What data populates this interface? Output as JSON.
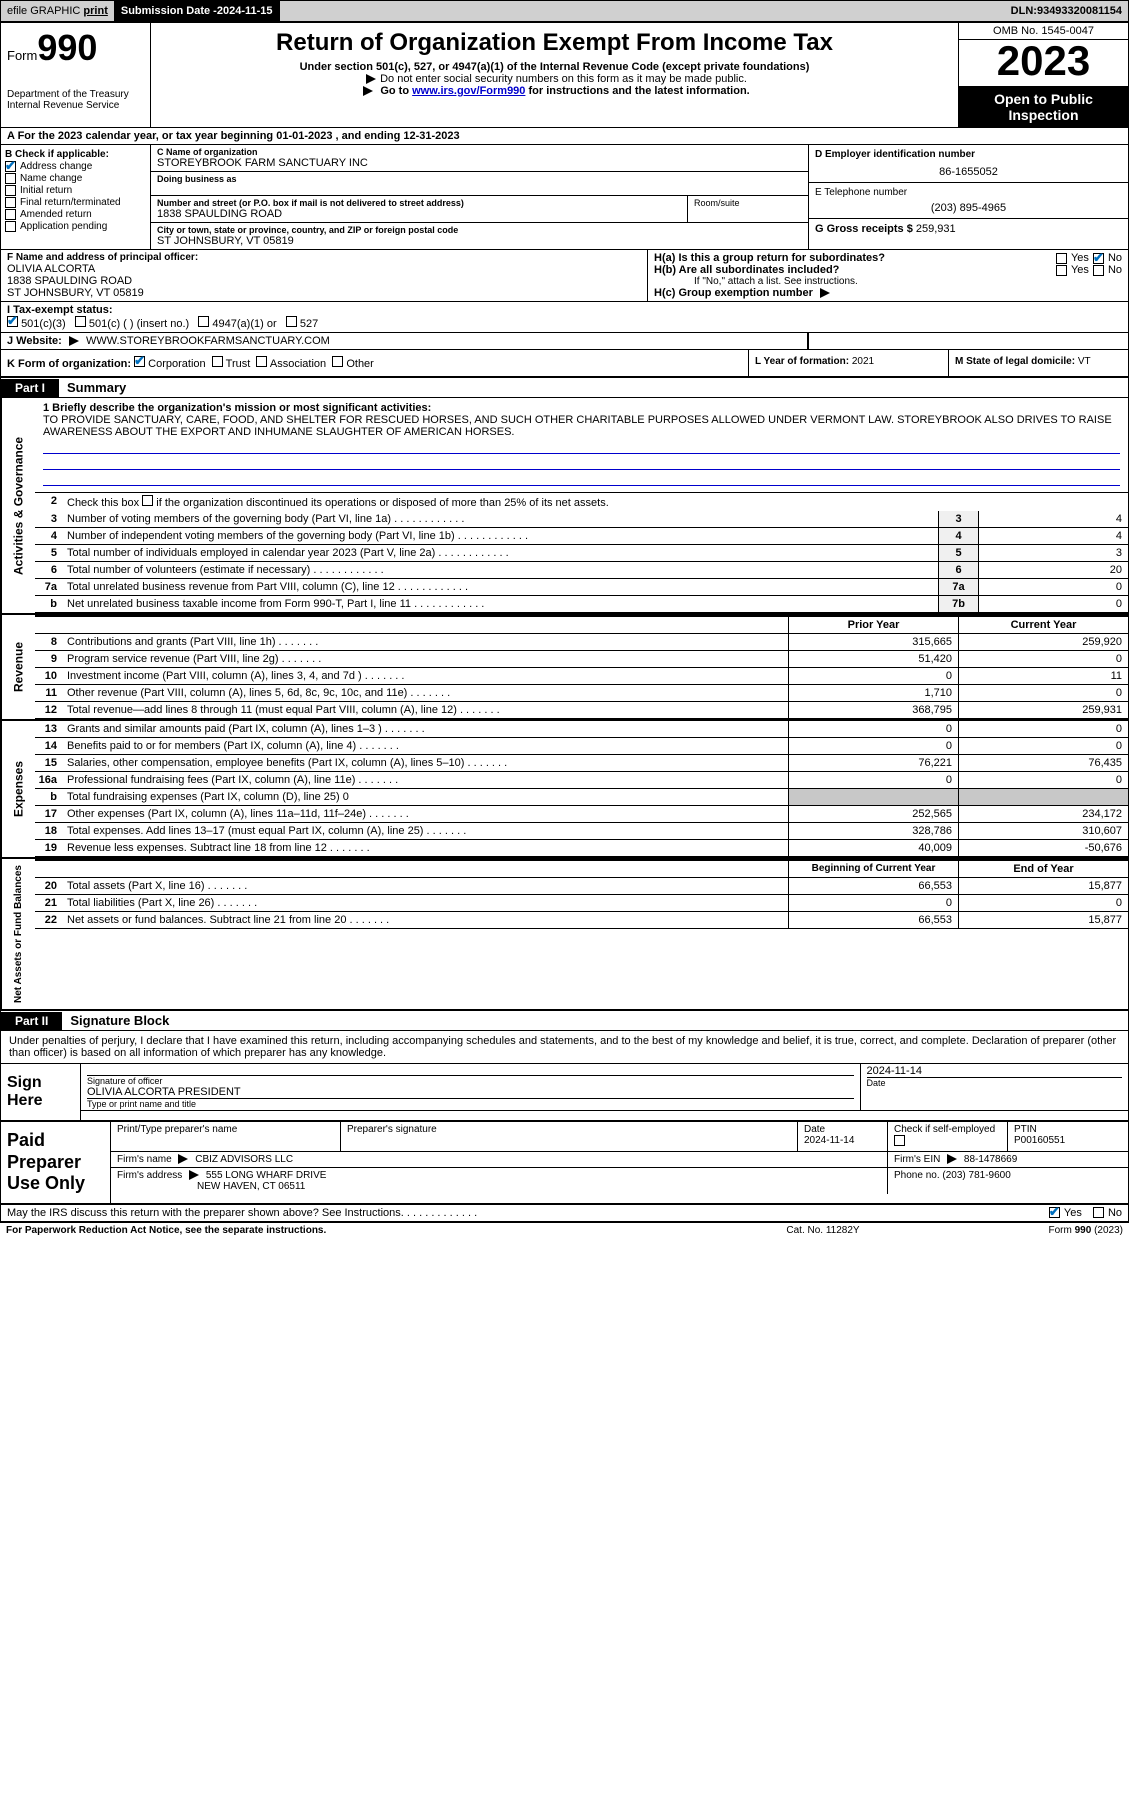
{
  "topbar": {
    "efile": "efile GRAPHIC",
    "print": "print",
    "sub_date_label": "Submission Date - ",
    "sub_date": "2024-11-15",
    "dln_label": "DLN: ",
    "dln": "93493320081154"
  },
  "header": {
    "form_prefix": "Form",
    "form_num": "990",
    "title": "Return of Organization Exempt From Income Tax",
    "sub1": "Under section 501(c), 527, or 4947(a)(1) of the Internal Revenue Code (except private foundations)",
    "sub2": "Do not enter social security numbers on this form as it may be made public.",
    "sub3_pre": "Go to ",
    "sub3_link": "www.irs.gov/Form990",
    "sub3_post": " for instructions and the latest information.",
    "dept": "Department of the Treasury\nInternal Revenue Service",
    "omb": "OMB No. 1545-0047",
    "tax_year": "2023",
    "open_pub": "Open to Public Inspection"
  },
  "row_a": {
    "text": "A For the 2023 calendar year, or tax year beginning ",
    "begin": "01-01-2023",
    "mid": "  , and ending ",
    "end": "12-31-2023"
  },
  "col_b": {
    "label": "B Check if applicable:",
    "items": [
      {
        "txt": "Address change",
        "checked": true
      },
      {
        "txt": "Name change",
        "checked": false
      },
      {
        "txt": "Initial return",
        "checked": false
      },
      {
        "txt": "Final return/terminated",
        "checked": false
      },
      {
        "txt": "Amended return",
        "checked": false
      },
      {
        "txt": "Application pending",
        "checked": false
      }
    ]
  },
  "org": {
    "name_label": "C Name of organization",
    "name": "STOREYBROOK FARM SANCTUARY INC",
    "dba_label": "Doing business as",
    "addr_label": "Number and street (or P.O. box if mail is not delivered to street address)",
    "addr": "1838 SPAULDING ROAD",
    "room_label": "Room/suite",
    "city_label": "City or town, state or province, country, and ZIP or foreign postal code",
    "city": "ST JOHNSBURY, VT  05819"
  },
  "right_col": {
    "ein_label": "D Employer identification number",
    "ein": "86-1655052",
    "phone_label": "E Telephone number",
    "phone": "(203) 895-4965",
    "gross_label": "G Gross receipts $ ",
    "gross": "259,931"
  },
  "officer": {
    "label": "F Name and address of principal officer:",
    "name": "OLIVIA ALCORTA",
    "addr1": "1838 SPAULDING ROAD",
    "addr2": "ST JOHNSBURY, VT  05819"
  },
  "h_block": {
    "ha": "H(a)  Is this a group return for subordinates?",
    "hb": "H(b)  Are all subordinates included?",
    "hb_note": "If \"No,\" attach a list. See instructions.",
    "hc": "H(c)  Group exemption number",
    "yes": "Yes",
    "no": "No"
  },
  "row_i": {
    "label": "I    Tax-exempt status:",
    "opt1": "501(c)(3)",
    "opt2": "501(c) (  ) (insert no.)",
    "opt3": "4947(a)(1) or",
    "opt4": "527"
  },
  "row_j": {
    "label": "J    Website:",
    "value": "WWW.STOREYBROOKFARMSANCTUARY.COM"
  },
  "row_k": {
    "label": "K Form of organization:",
    "corp": "Corporation",
    "trust": "Trust",
    "assoc": "Association",
    "other": "Other",
    "l_label": "L Year of formation: ",
    "l_val": "2021",
    "m_label": "M State of legal domicile: ",
    "m_val": "VT"
  },
  "parts": {
    "p1": "Part I",
    "p1_title": "Summary",
    "p2": "Part II",
    "p2_title": "Signature Block"
  },
  "vtabs": {
    "gov": "Activities & Governance",
    "rev": "Revenue",
    "exp": "Expenses",
    "net": "Net Assets or Fund Balances"
  },
  "mission": {
    "label": "1   Briefly describe the organization's mission or most significant activities:",
    "text": "TO PROVIDE SANCTUARY, CARE, FOOD, AND SHELTER FOR RESCUED HORSES, AND SUCH OTHER CHARITABLE PURPOSES ALLOWED UNDER VERMONT LAW. STOREYBROOK ALSO DRIVES TO RAISE AWARENESS ABOUT THE EXPORT AND INHUMANE SLAUGHTER OF AMERICAN HORSES."
  },
  "gov_lines": [
    {
      "n": "2",
      "d": "Check this box      if the organization discontinued its operations or disposed of more than 25% of its net assets.",
      "b": "",
      "v": ""
    },
    {
      "n": "3",
      "d": "Number of voting members of the governing body (Part VI, line 1a)",
      "b": "3",
      "v": "4"
    },
    {
      "n": "4",
      "d": "Number of independent voting members of the governing body (Part VI, line 1b)",
      "b": "4",
      "v": "4"
    },
    {
      "n": "5",
      "d": "Total number of individuals employed in calendar year 2023 (Part V, line 2a)",
      "b": "5",
      "v": "3"
    },
    {
      "n": "6",
      "d": "Total number of volunteers (estimate if necessary)",
      "b": "6",
      "v": "20"
    },
    {
      "n": "7a",
      "d": "Total unrelated business revenue from Part VIII, column (C), line 12",
      "b": "7a",
      "v": "0"
    },
    {
      "n": "b",
      "d": "Net unrelated business taxable income from Form 990-T, Part I, line 11",
      "b": "7b",
      "v": "0"
    }
  ],
  "fin_hdr": {
    "prior": "Prior Year",
    "curr": "Current Year",
    "beg": "Beginning of Current Year",
    "end": "End of Year"
  },
  "rev_lines": [
    {
      "n": "8",
      "d": "Contributions and grants (Part VIII, line 1h)",
      "p": "315,665",
      "c": "259,920"
    },
    {
      "n": "9",
      "d": "Program service revenue (Part VIII, line 2g)",
      "p": "51,420",
      "c": "0"
    },
    {
      "n": "10",
      "d": "Investment income (Part VIII, column (A), lines 3, 4, and 7d )",
      "p": "0",
      "c": "11"
    },
    {
      "n": "11",
      "d": "Other revenue (Part VIII, column (A), lines 5, 6d, 8c, 9c, 10c, and 11e)",
      "p": "1,710",
      "c": "0"
    },
    {
      "n": "12",
      "d": "Total revenue—add lines 8 through 11 (must equal Part VIII, column (A), line 12)",
      "p": "368,795",
      "c": "259,931"
    }
  ],
  "exp_lines": [
    {
      "n": "13",
      "d": "Grants and similar amounts paid (Part IX, column (A), lines 1–3 )",
      "p": "0",
      "c": "0"
    },
    {
      "n": "14",
      "d": "Benefits paid to or for members (Part IX, column (A), line 4)",
      "p": "0",
      "c": "0"
    },
    {
      "n": "15",
      "d": "Salaries, other compensation, employee benefits (Part IX, column (A), lines 5–10)",
      "p": "76,221",
      "c": "76,435"
    },
    {
      "n": "16a",
      "d": "Professional fundraising fees (Part IX, column (A), line 11e)",
      "p": "0",
      "c": "0"
    },
    {
      "n": "b",
      "d": "Total fundraising expenses (Part IX, column (D), line 25) 0",
      "p": "",
      "c": "",
      "gray": true
    },
    {
      "n": "17",
      "d": "Other expenses (Part IX, column (A), lines 11a–11d, 11f–24e)",
      "p": "252,565",
      "c": "234,172"
    },
    {
      "n": "18",
      "d": "Total expenses. Add lines 13–17 (must equal Part IX, column (A), line 25)",
      "p": "328,786",
      "c": "310,607"
    },
    {
      "n": "19",
      "d": "Revenue less expenses. Subtract line 18 from line 12",
      "p": "40,009",
      "c": "-50,676"
    }
  ],
  "net_lines": [
    {
      "n": "20",
      "d": "Total assets (Part X, line 16)",
      "p": "66,553",
      "c": "15,877"
    },
    {
      "n": "21",
      "d": "Total liabilities (Part X, line 26)",
      "p": "0",
      "c": "0"
    },
    {
      "n": "22",
      "d": "Net assets or fund balances. Subtract line 21 from line 20",
      "p": "66,553",
      "c": "15,877"
    }
  ],
  "perjury": "Under penalties of perjury, I declare that I have examined this return, including accompanying schedules and statements, and to the best of my knowledge and belief, it is true, correct, and complete. Declaration of preparer (other than officer) is based on all information of which preparer has any knowledge.",
  "sign": {
    "here": "Sign Here",
    "sig_label": "Signature of officer",
    "date_label": "Date",
    "date": "2024-11-14",
    "officer": "OLIVIA ALCORTA  PRESIDENT",
    "type_label": "Type or print name and title"
  },
  "paid": {
    "title": "Paid Preparer Use Only",
    "pt_label": "Print/Type preparer's name",
    "ps_label": "Preparer's signature",
    "d_label": "Date",
    "d_val": "2024-11-14",
    "chk_label": "Check         if self-employed",
    "ptin_label": "PTIN",
    "ptin": "P00160551",
    "firm_name_label": "Firm's name",
    "firm_name": "CBIZ ADVISORS LLC",
    "firm_ein_label": "Firm's EIN",
    "firm_ein": "88-1478669",
    "firm_addr_label": "Firm's address",
    "firm_addr1": "555 LONG WHARF DRIVE",
    "firm_addr2": "NEW HAVEN, CT  06511",
    "firm_phone_label": "Phone no.",
    "firm_phone": "(203) 781-9600"
  },
  "discuss": {
    "q": "May the IRS discuss this return with the preparer shown above? See Instructions.",
    "yes": "Yes",
    "no": "No"
  },
  "footer": {
    "left": "For Paperwork Reduction Act Notice, see the separate instructions.",
    "mid": "Cat. No. 11282Y",
    "right": "Form 990 (2023)"
  }
}
